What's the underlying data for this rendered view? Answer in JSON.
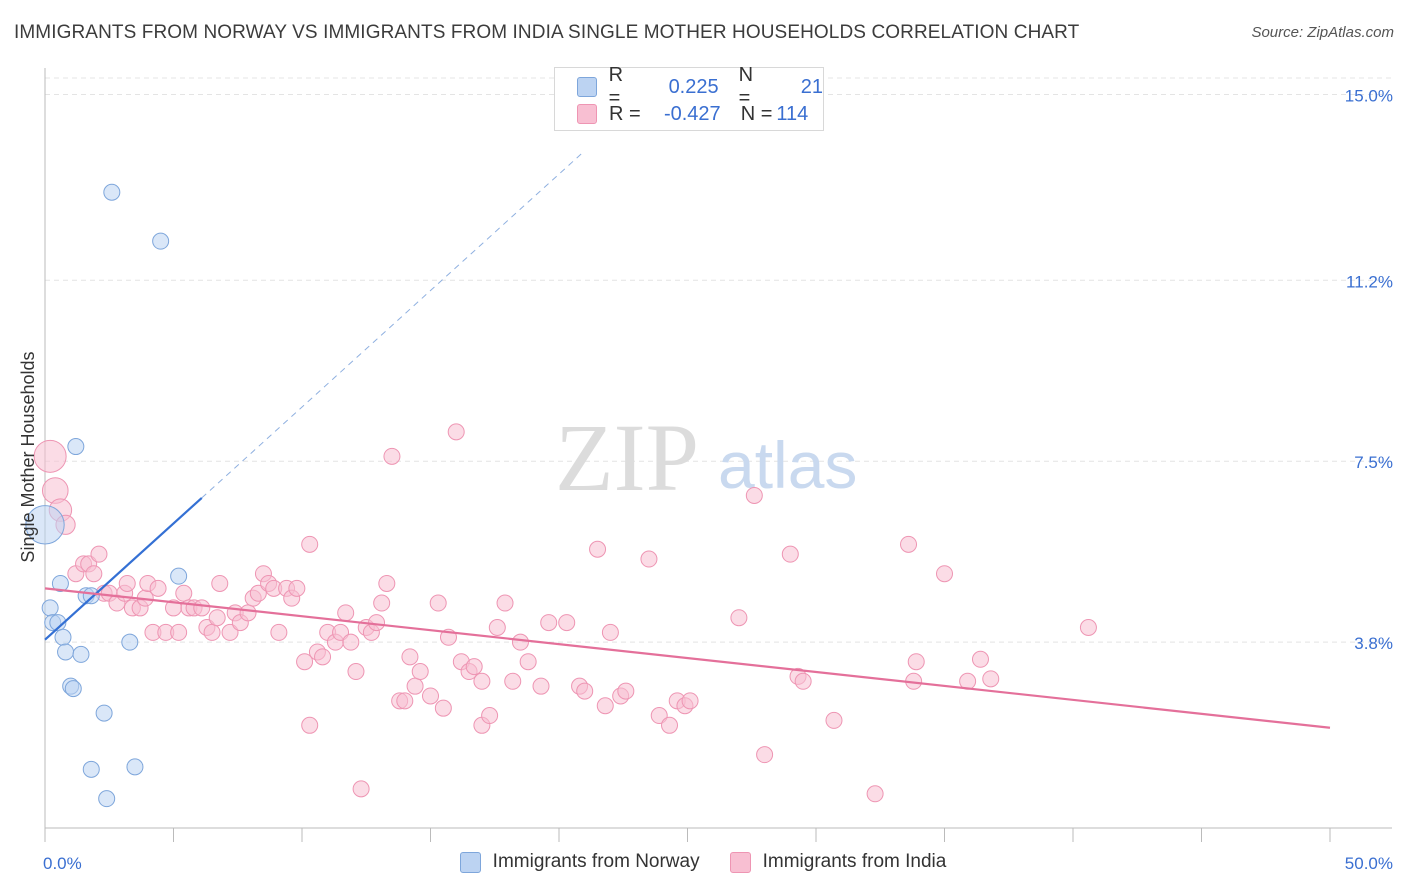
{
  "title": "IMMIGRANTS FROM NORWAY VS IMMIGRANTS FROM INDIA SINGLE MOTHER HOUSEHOLDS CORRELATION CHART",
  "source": "Source: ZipAtlas.com",
  "watermark": {
    "zip": "ZIP",
    "atlas": "atlas"
  },
  "colors": {
    "norway_fill": "#bcd3f2",
    "norway_stroke": "#7ea6db",
    "norway_line": "#3470d4",
    "india_fill": "#f8bfd2",
    "india_stroke": "#ee95b3",
    "india_line": "#e4709a",
    "tick_label": "#3a6fd1",
    "grid": "#e4e4e4"
  },
  "legend": {
    "rows": [
      {
        "r_label": "R =",
        "r_value": "0.225",
        "n_label": "N =",
        "n_value": "21"
      },
      {
        "r_label": "R =",
        "r_value": "-0.427",
        "n_label": "N =",
        "n_value": "114"
      }
    ]
  },
  "bottom_legend": [
    "Immigrants from Norway",
    "Immigrants from India"
  ],
  "chart_data": {
    "type": "scatter",
    "xlabel": "",
    "ylabel": "Single Mother Households",
    "xlim": [
      0,
      50
    ],
    "ylim": [
      0,
      15.5
    ],
    "x_tick_labels": [
      {
        "value": 0,
        "label": "0.0%"
      },
      {
        "value": 50,
        "label": "50.0%"
      }
    ],
    "y_ticks": [
      {
        "value": 3.8,
        "label": "3.8%"
      },
      {
        "value": 7.5,
        "label": "7.5%"
      },
      {
        "value": 11.2,
        "label": "11.2%"
      },
      {
        "value": 15.0,
        "label": "15.0%"
      }
    ],
    "grid": true,
    "series": [
      {
        "name": "Immigrants from Norway",
        "r": 0.225,
        "n": 21,
        "trend": {
          "x0": 0,
          "y0": 3.85,
          "x1": 6.1,
          "y1": 6.75,
          "dash_to_x": 20.9,
          "dash_to_y": 13.8
        },
        "points": [
          {
            "x": 0.0,
            "y": 6.2,
            "s": 2.4
          },
          {
            "x": 0.2,
            "y": 4.5,
            "s": 1
          },
          {
            "x": 0.3,
            "y": 4.2,
            "s": 1
          },
          {
            "x": 0.5,
            "y": 4.2,
            "s": 1
          },
          {
            "x": 0.6,
            "y": 5.0,
            "s": 1
          },
          {
            "x": 0.7,
            "y": 3.9,
            "s": 1
          },
          {
            "x": 0.8,
            "y": 3.6,
            "s": 1
          },
          {
            "x": 1.0,
            "y": 2.9,
            "s": 1
          },
          {
            "x": 1.1,
            "y": 2.85,
            "s": 1
          },
          {
            "x": 1.2,
            "y": 7.8,
            "s": 1
          },
          {
            "x": 1.4,
            "y": 3.55,
            "s": 1
          },
          {
            "x": 1.6,
            "y": 4.75,
            "s": 1
          },
          {
            "x": 1.8,
            "y": 4.75,
            "s": 1
          },
          {
            "x": 1.8,
            "y": 1.2,
            "s": 1
          },
          {
            "x": 2.3,
            "y": 2.35,
            "s": 1
          },
          {
            "x": 2.4,
            "y": 0.6,
            "s": 1
          },
          {
            "x": 2.6,
            "y": 13.0,
            "s": 1
          },
          {
            "x": 3.3,
            "y": 3.8,
            "s": 1
          },
          {
            "x": 3.5,
            "y": 1.25,
            "s": 1
          },
          {
            "x": 4.5,
            "y": 12.0,
            "s": 1
          },
          {
            "x": 5.2,
            "y": 5.15,
            "s": 1
          }
        ]
      },
      {
        "name": "Immigrants from India",
        "r": -0.427,
        "n": 114,
        "trend": {
          "x0": 0,
          "y0": 4.9,
          "x1": 50,
          "y1": 2.05
        },
        "points": [
          {
            "x": 0.2,
            "y": 7.6,
            "s": 2.0
          },
          {
            "x": 0.4,
            "y": 6.9,
            "s": 1.6
          },
          {
            "x": 0.6,
            "y": 6.5,
            "s": 1.4
          },
          {
            "x": 0.8,
            "y": 6.2,
            "s": 1.2
          },
          {
            "x": 1.2,
            "y": 5.2,
            "s": 1
          },
          {
            "x": 1.5,
            "y": 5.4,
            "s": 1
          },
          {
            "x": 1.7,
            "y": 5.4,
            "s": 1
          },
          {
            "x": 1.9,
            "y": 5.2,
            "s": 1
          },
          {
            "x": 2.1,
            "y": 5.6,
            "s": 1
          },
          {
            "x": 2.3,
            "y": 4.8,
            "s": 1
          },
          {
            "x": 2.5,
            "y": 4.8,
            "s": 1
          },
          {
            "x": 2.8,
            "y": 4.6,
            "s": 1
          },
          {
            "x": 3.1,
            "y": 4.8,
            "s": 1
          },
          {
            "x": 3.2,
            "y": 5.0,
            "s": 1
          },
          {
            "x": 3.4,
            "y": 4.5,
            "s": 1
          },
          {
            "x": 3.7,
            "y": 4.5,
            "s": 1
          },
          {
            "x": 3.9,
            "y": 4.7,
            "s": 1
          },
          {
            "x": 4.0,
            "y": 5.0,
            "s": 1
          },
          {
            "x": 4.2,
            "y": 4.0,
            "s": 1
          },
          {
            "x": 4.4,
            "y": 4.9,
            "s": 1
          },
          {
            "x": 4.7,
            "y": 4.0,
            "s": 1
          },
          {
            "x": 5.0,
            "y": 4.5,
            "s": 1
          },
          {
            "x": 5.2,
            "y": 4.0,
            "s": 1
          },
          {
            "x": 5.4,
            "y": 4.8,
            "s": 1
          },
          {
            "x": 5.6,
            "y": 4.5,
            "s": 1
          },
          {
            "x": 5.8,
            "y": 4.5,
            "s": 1
          },
          {
            "x": 6.1,
            "y": 4.5,
            "s": 1
          },
          {
            "x": 6.3,
            "y": 4.1,
            "s": 1
          },
          {
            "x": 6.5,
            "y": 4.0,
            "s": 1
          },
          {
            "x": 6.7,
            "y": 4.3,
            "s": 1
          },
          {
            "x": 6.8,
            "y": 5.0,
            "s": 1
          },
          {
            "x": 7.2,
            "y": 4.0,
            "s": 1
          },
          {
            "x": 7.4,
            "y": 4.4,
            "s": 1
          },
          {
            "x": 7.6,
            "y": 4.2,
            "s": 1
          },
          {
            "x": 7.9,
            "y": 4.4,
            "s": 1
          },
          {
            "x": 8.1,
            "y": 4.7,
            "s": 1
          },
          {
            "x": 8.3,
            "y": 4.8,
            "s": 1
          },
          {
            "x": 8.5,
            "y": 5.2,
            "s": 1
          },
          {
            "x": 8.7,
            "y": 5.0,
            "s": 1
          },
          {
            "x": 8.9,
            "y": 4.9,
            "s": 1
          },
          {
            "x": 9.1,
            "y": 4.0,
            "s": 1
          },
          {
            "x": 9.4,
            "y": 4.9,
            "s": 1
          },
          {
            "x": 9.6,
            "y": 4.7,
            "s": 1
          },
          {
            "x": 9.8,
            "y": 4.9,
            "s": 1
          },
          {
            "x": 10.1,
            "y": 3.4,
            "s": 1
          },
          {
            "x": 10.3,
            "y": 2.1,
            "s": 1
          },
          {
            "x": 10.3,
            "y": 5.8,
            "s": 1
          },
          {
            "x": 10.6,
            "y": 3.6,
            "s": 1
          },
          {
            "x": 10.8,
            "y": 3.5,
            "s": 1
          },
          {
            "x": 11.0,
            "y": 4.0,
            "s": 1
          },
          {
            "x": 11.3,
            "y": 3.8,
            "s": 1
          },
          {
            "x": 11.5,
            "y": 4.0,
            "s": 1
          },
          {
            "x": 11.7,
            "y": 4.4,
            "s": 1
          },
          {
            "x": 11.9,
            "y": 3.8,
            "s": 1
          },
          {
            "x": 12.1,
            "y": 3.2,
            "s": 1
          },
          {
            "x": 12.3,
            "y": 0.8,
            "s": 1
          },
          {
            "x": 12.5,
            "y": 4.1,
            "s": 1
          },
          {
            "x": 12.7,
            "y": 4.0,
            "s": 1
          },
          {
            "x": 12.9,
            "y": 4.2,
            "s": 1
          },
          {
            "x": 13.1,
            "y": 4.6,
            "s": 1
          },
          {
            "x": 13.3,
            "y": 5.0,
            "s": 1
          },
          {
            "x": 13.5,
            "y": 7.6,
            "s": 1
          },
          {
            "x": 13.8,
            "y": 2.6,
            "s": 1
          },
          {
            "x": 14.0,
            "y": 2.6,
            "s": 1
          },
          {
            "x": 14.2,
            "y": 3.5,
            "s": 1
          },
          {
            "x": 14.4,
            "y": 2.9,
            "s": 1
          },
          {
            "x": 14.6,
            "y": 3.2,
            "s": 1
          },
          {
            "x": 15.0,
            "y": 2.7,
            "s": 1
          },
          {
            "x": 15.3,
            "y": 4.6,
            "s": 1
          },
          {
            "x": 15.5,
            "y": 2.45,
            "s": 1
          },
          {
            "x": 15.7,
            "y": 3.9,
            "s": 1
          },
          {
            "x": 16.0,
            "y": 8.1,
            "s": 1
          },
          {
            "x": 16.2,
            "y": 3.4,
            "s": 1
          },
          {
            "x": 16.5,
            "y": 3.2,
            "s": 1
          },
          {
            "x": 16.7,
            "y": 3.3,
            "s": 1
          },
          {
            "x": 17.0,
            "y": 2.1,
            "s": 1
          },
          {
            "x": 17.0,
            "y": 3.0,
            "s": 1
          },
          {
            "x": 17.3,
            "y": 2.3,
            "s": 1
          },
          {
            "x": 17.6,
            "y": 4.1,
            "s": 1
          },
          {
            "x": 17.9,
            "y": 4.6,
            "s": 1
          },
          {
            "x": 18.2,
            "y": 3.0,
            "s": 1
          },
          {
            "x": 18.5,
            "y": 3.8,
            "s": 1
          },
          {
            "x": 18.8,
            "y": 3.4,
            "s": 1
          },
          {
            "x": 19.3,
            "y": 2.9,
            "s": 1
          },
          {
            "x": 19.6,
            "y": 4.2,
            "s": 1
          },
          {
            "x": 20.3,
            "y": 4.2,
            "s": 1
          },
          {
            "x": 20.8,
            "y": 2.9,
            "s": 1
          },
          {
            "x": 21.0,
            "y": 2.8,
            "s": 1
          },
          {
            "x": 21.5,
            "y": 5.7,
            "s": 1
          },
          {
            "x": 21.8,
            "y": 2.5,
            "s": 1
          },
          {
            "x": 22.0,
            "y": 4.0,
            "s": 1
          },
          {
            "x": 22.4,
            "y": 2.7,
            "s": 1
          },
          {
            "x": 22.6,
            "y": 2.8,
            "s": 1
          },
          {
            "x": 23.5,
            "y": 5.5,
            "s": 1
          },
          {
            "x": 23.9,
            "y": 2.3,
            "s": 1
          },
          {
            "x": 24.3,
            "y": 2.1,
            "s": 1
          },
          {
            "x": 24.6,
            "y": 2.6,
            "s": 1
          },
          {
            "x": 24.9,
            "y": 2.5,
            "s": 1
          },
          {
            "x": 25.1,
            "y": 2.6,
            "s": 1
          },
          {
            "x": 27.0,
            "y": 4.3,
            "s": 1
          },
          {
            "x": 27.6,
            "y": 6.8,
            "s": 1
          },
          {
            "x": 28.0,
            "y": 1.5,
            "s": 1
          },
          {
            "x": 29.0,
            "y": 5.6,
            "s": 1
          },
          {
            "x": 29.3,
            "y": 3.1,
            "s": 1
          },
          {
            "x": 29.5,
            "y": 3.0,
            "s": 1
          },
          {
            "x": 30.7,
            "y": 2.2,
            "s": 1
          },
          {
            "x": 32.3,
            "y": 0.7,
            "s": 1
          },
          {
            "x": 33.6,
            "y": 5.8,
            "s": 1
          },
          {
            "x": 33.8,
            "y": 3.0,
            "s": 1
          },
          {
            "x": 33.9,
            "y": 3.4,
            "s": 1
          },
          {
            "x": 35.0,
            "y": 5.2,
            "s": 1
          },
          {
            "x": 35.9,
            "y": 3.0,
            "s": 1
          },
          {
            "x": 36.4,
            "y": 3.45,
            "s": 1
          },
          {
            "x": 36.8,
            "y": 3.05,
            "s": 1
          },
          {
            "x": 40.6,
            "y": 4.1,
            "s": 1
          }
        ]
      }
    ]
  }
}
